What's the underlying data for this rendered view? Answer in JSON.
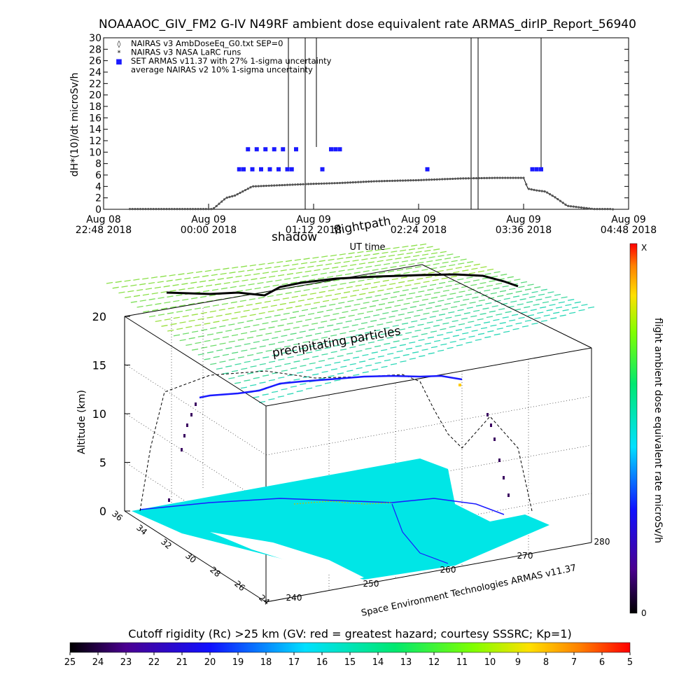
{
  "title": "NOAAAOC_GIV_FM2 G-IV   N49RF  ambient dose equivalent rate ARMAS_dirIP_Report_56940",
  "chart_data": [
    {
      "type": "scatter",
      "ylabel": "dH*(10)/dt microSv/h",
      "xlabel": "UT time",
      "ylim": [
        0,
        30
      ],
      "yticks": [
        0,
        2,
        4,
        6,
        8,
        10,
        12,
        14,
        16,
        18,
        20,
        22,
        24,
        26,
        28,
        30
      ],
      "xlim_hours": [
        22.8,
        28.8
      ],
      "xticks": [
        {
          "h": 22.8,
          "line1": "Aug 08",
          "line2": "22:48 2018"
        },
        {
          "h": 24.0,
          "line1": "Aug 09",
          "line2": "00:00 2018"
        },
        {
          "h": 25.2,
          "line1": "Aug 09",
          "line2": "01:12 2018"
        },
        {
          "h": 26.4,
          "line1": "Aug 09",
          "line2": "02:24 2018"
        },
        {
          "h": 27.6,
          "line1": "Aug 09",
          "line2": "03:36 2018"
        },
        {
          "h": 28.8,
          "line1": "Aug 09",
          "line2": "04:48 2018"
        }
      ],
      "legend": [
        {
          "symbol": "◊",
          "text": "NAIRAS v3 AmbDoseEq_G0.txt SEP=0"
        },
        {
          "symbol": "*",
          "text": "NAIRAS v3 NASA LaRC runs"
        },
        {
          "symbol": "■",
          "text": "SET ARMAS v11.37 with 27% 1-sigma uncertainty",
          "color": "#1a1aff"
        },
        {
          "symbol": "",
          "text": "average NAIRAS v2 10% 1-sigma uncertainty"
        }
      ],
      "series": [
        {
          "name": "NAIRAS v3 AmbDoseEq_G0.txt SEP=0",
          "color": "#555555",
          "x": [
            23.1,
            23.5,
            23.9,
            24.0,
            24.05,
            24.2,
            24.3,
            24.5,
            24.8,
            25.1,
            25.5,
            25.9,
            26.4,
            26.9,
            27.3,
            27.6,
            27.65,
            27.75,
            27.85,
            27.95,
            28.1,
            28.4,
            28.6
          ],
          "y": [
            0.05,
            0.05,
            0.05,
            0.05,
            0.05,
            2.0,
            2.4,
            4.0,
            4.2,
            4.4,
            4.6,
            4.9,
            5.1,
            5.4,
            5.5,
            5.5,
            3.6,
            3.3,
            3.1,
            2.2,
            0.6,
            0.05,
            0.05
          ]
        },
        {
          "name": "SET ARMAS v11.37 with 27% 1-sigma uncertainty",
          "color": "#1a1aff",
          "x": [
            24.35,
            24.4,
            24.45,
            24.5,
            24.55,
            24.6,
            24.65,
            24.7,
            24.75,
            24.8,
            24.85,
            24.9,
            24.95,
            25.0,
            25.3,
            25.4,
            25.45,
            25.5,
            26.5,
            27.7,
            27.75,
            27.8
          ],
          "y": [
            7.0,
            7.0,
            10.5,
            7.0,
            10.5,
            7.0,
            10.5,
            7.0,
            10.5,
            7.0,
            10.5,
            7.0,
            7.0,
            10.5,
            7.0,
            10.5,
            10.5,
            10.5,
            7.0,
            7.0,
            7.0,
            7.0
          ]
        }
      ]
    },
    {
      "type": "scatter",
      "title": "",
      "zlabel": "Altitude (km)",
      "zticks": [
        0,
        5,
        10,
        15,
        20
      ],
      "lat_ticks": [
        36,
        34,
        32,
        30,
        28,
        26,
        24
      ],
      "lon_ticks": [
        240,
        250,
        260,
        270,
        280
      ],
      "annotations": [
        "shadow",
        "flightpath",
        "precipitating particles",
        "Space Environment Technologies ARMAS v11.37"
      ],
      "colorbar_label": "flight ambient dose equivalent rate microSv/h",
      "colorbar_range": [
        "0",
        "X"
      ],
      "flight_altitude_km": 12.5
    }
  ],
  "cutoff_bar": {
    "label": "Cutoff rigidity (Rc) >25 km (GV: red = greatest hazard; courtesy SSSRC; Kp=1)",
    "ticks": [
      "25",
      "24",
      "23",
      "22",
      "21",
      "20",
      "19",
      "18",
      "17",
      "16",
      "15",
      "14",
      "13",
      "12",
      "11",
      "10",
      "9",
      "8",
      "7",
      "6",
      "5"
    ]
  },
  "colors": {
    "armas": "#1a1aff",
    "nairas": "#555555",
    "ocean": "#00e6e6",
    "grid_arrows": "#7ee05a"
  }
}
